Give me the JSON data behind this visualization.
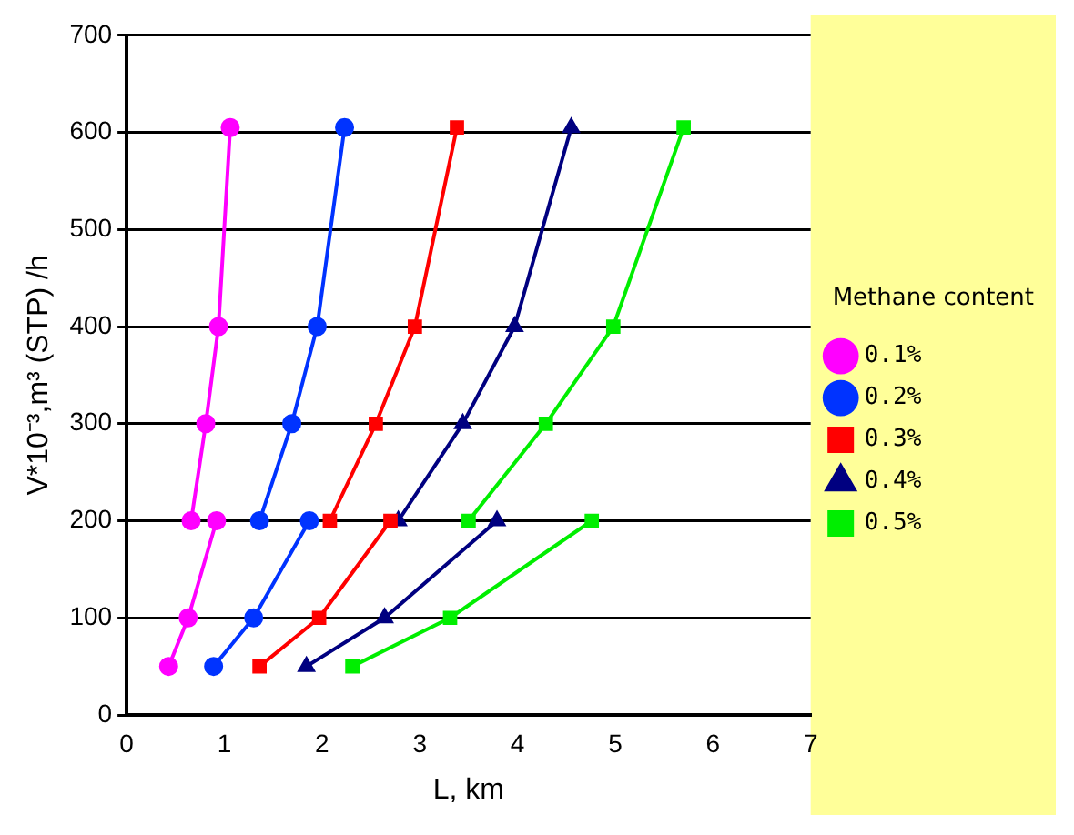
{
  "chart_data": {
    "type": "line",
    "xlabel": "L, km",
    "ylabel": "V*10⁻³,m³ (STP) /h",
    "legend_title": "Methane content",
    "xlim": [
      0,
      7
    ],
    "xticks": [
      0,
      1,
      2,
      3,
      4,
      5,
      6,
      7
    ],
    "ylim": [
      0,
      700
    ],
    "yticks": [
      0,
      100,
      200,
      300,
      400,
      500,
      600,
      700
    ],
    "grid": "y",
    "legend": "right",
    "line_style": "solid",
    "series": [
      {
        "name": "0.1%",
        "color": "#ff00ff",
        "marker": "circle",
        "x": [
          0.43,
          0.63,
          0.92,
          null,
          0.66,
          0.81,
          0.94,
          1.06
        ],
        "values": [
          50,
          100,
          200,
          null,
          200,
          300,
          400,
          605
        ]
      },
      {
        "name": "0.2%",
        "color": "#0033ff",
        "marker": "circle",
        "x": [
          0.89,
          1.3,
          1.87,
          null,
          1.36,
          1.69,
          1.95,
          2.23
        ],
        "values": [
          50,
          100,
          200,
          null,
          200,
          300,
          400,
          605
        ]
      },
      {
        "name": "0.3%",
        "color": "#ff0000",
        "marker": "square",
        "x": [
          1.36,
          1.97,
          2.7,
          null,
          2.08,
          2.55,
          2.95,
          3.38
        ],
        "values": [
          50,
          100,
          200,
          null,
          200,
          300,
          400,
          605
        ]
      },
      {
        "name": "0.4%",
        "color": "#000080",
        "marker": "triangle",
        "x": [
          1.84,
          2.64,
          3.79,
          null,
          2.78,
          3.44,
          3.97,
          4.55
        ],
        "values": [
          50,
          100,
          200,
          null,
          200,
          300,
          400,
          605
        ]
      },
      {
        "name": "0.5%",
        "color": "#00ee00",
        "marker": "square",
        "x": [
          2.31,
          3.31,
          4.76,
          null,
          3.5,
          4.29,
          4.98,
          5.7
        ],
        "values": [
          50,
          100,
          200,
          null,
          200,
          300,
          400,
          605
        ]
      }
    ]
  }
}
